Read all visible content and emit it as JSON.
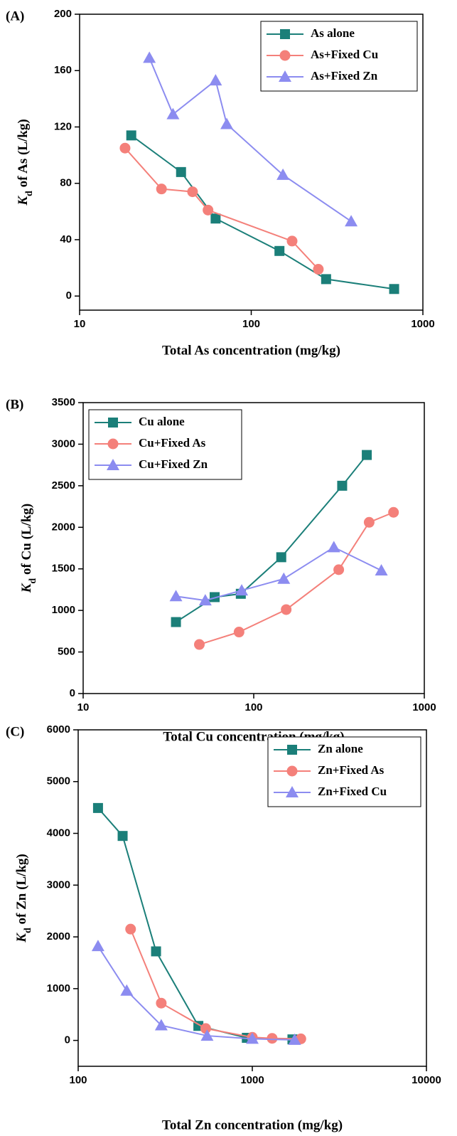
{
  "chart_data": [
    {
      "type": "line",
      "panel": "(A)",
      "xlabel": "Total As concentration (mg/kg)",
      "ylabel": "Kd of As (L/kg)",
      "xlog": true,
      "xlim": [
        10,
        1000
      ],
      "xticks": [
        10,
        100,
        1000
      ],
      "ylim": [
        -10,
        200
      ],
      "yticks": [
        0,
        40,
        80,
        120,
        160,
        200
      ],
      "legend": "upper right",
      "series": [
        {
          "name": "As alone",
          "color": "#1b7f79",
          "marker": "square",
          "x": [
            20,
            39,
            62,
            146,
            273,
            680
          ],
          "values": [
            114,
            88,
            55,
            32,
            12,
            5
          ]
        },
        {
          "name": "As+Fixed Cu",
          "color": "#f4807a",
          "marker": "circle",
          "x": [
            18.4,
            30,
            45.5,
            56,
            173,
            246
          ],
          "values": [
            105,
            76,
            74,
            61,
            39,
            19
          ]
        },
        {
          "name": "As+Fixed Zn",
          "color": "#8c8cf0",
          "marker": "triangle",
          "x": [
            25.5,
            35,
            62,
            72,
            153,
            382
          ],
          "values": [
            169,
            129,
            153,
            122,
            86,
            53
          ]
        }
      ]
    },
    {
      "type": "line",
      "panel": "(B)",
      "xlabel": "Total Cu concentration (mg/kg)",
      "ylabel": "Kd of Cu (L/kg)",
      "xlog": true,
      "xlim": [
        10,
        1000
      ],
      "xticks": [
        10,
        100,
        1000
      ],
      "ylim": [
        0,
        3500
      ],
      "yticks": [
        0,
        500,
        1000,
        1500,
        2000,
        2500,
        3000,
        3500
      ],
      "legend": "upper left",
      "series": [
        {
          "name": "Cu alone",
          "color": "#1b7f79",
          "marker": "square",
          "x": [
            35,
            59,
            84,
            145,
            330,
            460
          ],
          "values": [
            860,
            1160,
            1200,
            1640,
            2500,
            2870
          ]
        },
        {
          "name": "Cu+Fixed As",
          "color": "#f4807a",
          "marker": "circle",
          "x": [
            48,
            82,
            155,
            315,
            475,
            660
          ],
          "values": [
            590,
            740,
            1010,
            1490,
            2060,
            2180
          ]
        },
        {
          "name": "Cu+Fixed Zn",
          "color": "#8c8cf0",
          "marker": "triangle",
          "x": [
            35,
            52,
            85,
            150,
            295,
            560
          ],
          "values": [
            1170,
            1120,
            1240,
            1380,
            1760,
            1480
          ]
        }
      ]
    },
    {
      "type": "line",
      "panel": "(C)",
      "xlabel": "Total Zn concentration (mg/kg)",
      "ylabel": "Kd of Zn (L/kg)",
      "xlog": true,
      "xlim": [
        100,
        10000
      ],
      "xticks": [
        100,
        1000,
        10000
      ],
      "ylim": [
        -500,
        6000
      ],
      "yticks": [
        0,
        1000,
        2000,
        3000,
        4000,
        5000,
        6000
      ],
      "legend": "upper right",
      "series": [
        {
          "name": "Zn alone",
          "color": "#1b7f79",
          "marker": "square",
          "x": [
            130,
            180,
            280,
            490,
            930,
            1700
          ],
          "values": [
            4490,
            3950,
            1720,
            280,
            50,
            20
          ]
        },
        {
          "name": "Zn+Fixed As",
          "color": "#f4807a",
          "marker": "circle",
          "x": [
            200,
            300,
            540,
            1000,
            1300,
            1900
          ],
          "values": [
            2150,
            720,
            230,
            60,
            40,
            30
          ]
        },
        {
          "name": "Zn+Fixed Cu",
          "color": "#8c8cf0",
          "marker": "triangle",
          "x": [
            130,
            190,
            300,
            550,
            1000,
            1750
          ],
          "values": [
            1820,
            960,
            290,
            90,
            30,
            10
          ]
        }
      ]
    }
  ]
}
